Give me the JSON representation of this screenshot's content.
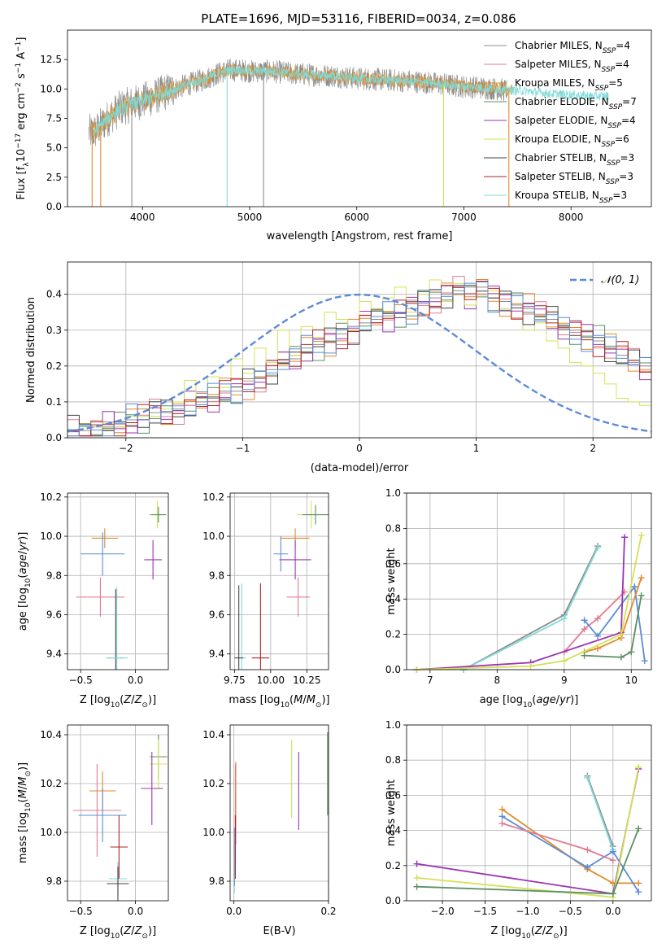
{
  "figure_title": "PLATE=1696, MJD=53116, FIBERID=0034, z=0.086",
  "colors": {
    "Chabrier MILES": "#8c8c8c",
    "Salpeter MILES": "#e07b91",
    "Kroupa MILES": "#e08a2c",
    "Chabrier ELODIE": "#5b8f62",
    "Salpeter ELODIE": "#9b34b5",
    "Kroupa ELODIE": "#d4e157",
    "Chabrier STELIB": "#444444",
    "Salpeter STELIB": "#b22222",
    "Kroupa STELIB": "#7fdbd8",
    "highlight_blue": "#5b8bd9",
    "grid": "#b0b0b0"
  },
  "chart_data": [
    {
      "id": "spectrum",
      "type": "line",
      "xlabel": "wavelength [Angstrom, rest frame]",
      "ylabel": "Flux [f_λ10^-17 erg cm^-2 s^-1 A^-1]",
      "xlim": [
        3300,
        8750
      ],
      "ylim": [
        0,
        15
      ],
      "xticks": [
        4000,
        5000,
        6000,
        7000,
        8000
      ],
      "yticks": [
        0.0,
        2.5,
        5.0,
        7.5,
        10.0,
        12.5
      ],
      "grid": false,
      "legend_position": "top-right",
      "legend": [
        {
          "label": "Chabrier MILES, N",
          "sub": "SSP",
          "suffix": "=4",
          "key": "Chabrier MILES"
        },
        {
          "label": "Salpeter MILES, N",
          "sub": "SSP",
          "suffix": "=4",
          "key": "Salpeter MILES"
        },
        {
          "label": "Kroupa MILES, N",
          "sub": "SSP",
          "suffix": "=5",
          "key": "Kroupa MILES"
        },
        {
          "label": "Chabrier ELODIE, N",
          "sub": "SSP",
          "suffix": "=7",
          "key": "Chabrier ELODIE"
        },
        {
          "label": "Salpeter ELODIE, N",
          "sub": "SSP",
          "suffix": "=4",
          "key": "Salpeter ELODIE"
        },
        {
          "label": "Kroupa ELODIE, N",
          "sub": "SSP",
          "suffix": "=6",
          "key": "Kroupa ELODIE"
        },
        {
          "label": "Chabrier STELIB, N",
          "sub": "SSP",
          "suffix": "=3",
          "key": "Chabrier STELIB"
        },
        {
          "label": "Salpeter STELIB, N",
          "sub": "SSP",
          "suffix": "=3",
          "key": "Salpeter STELIB"
        },
        {
          "label": "Kroupa STELIB, N",
          "sub": "SSP",
          "suffix": "=3",
          "key": "Kroupa STELIB"
        }
      ],
      "envelope": {
        "x": [
          3550,
          3700,
          3800,
          3900,
          4000,
          4100,
          4200,
          4300,
          4400,
          4500,
          4600,
          4700,
          4800,
          4900,
          5000,
          5200,
          5400,
          5600,
          5800,
          6000,
          6200,
          6400,
          6600,
          6800,
          7000,
          7200,
          7400,
          7600,
          7800,
          8000,
          8200
        ],
        "y": [
          6.3,
          7.7,
          8.4,
          8.7,
          9.0,
          9.3,
          9.7,
          10.0,
          10.3,
          10.6,
          10.9,
          11.3,
          11.6,
          11.6,
          11.5,
          11.5,
          11.3,
          11.2,
          11.1,
          10.9,
          10.8,
          10.7,
          10.6,
          10.4,
          10.2,
          10.1,
          9.9,
          9.8,
          9.6,
          9.5,
          9.4
        ]
      },
      "noisy_series": [
        {
          "key": "Chabrier MILES",
          "noise": 2.0,
          "xmin": 3500,
          "xmax": 7400
        },
        {
          "key": "Kroupa MILES",
          "noise": 1.1,
          "xmin": 3520,
          "xmax": 7450
        },
        {
          "key": "Kroupa STELIB",
          "noise": 0.8,
          "xmin": 3540,
          "xmax": 8350
        }
      ],
      "dropouts": [
        {
          "key": "Kroupa MILES",
          "x": 3530
        },
        {
          "key": "Kroupa MILES",
          "x": 3610
        },
        {
          "key": "Chabrier MILES",
          "x": 3900
        },
        {
          "key": "Kroupa STELIB",
          "x": 4790
        },
        {
          "key": "Chabrier MILES",
          "x": 5130
        },
        {
          "key": "Kroupa ELODIE",
          "x": 6810
        },
        {
          "key": "Kroupa MILES",
          "x": 7420
        }
      ]
    },
    {
      "id": "residuals",
      "type": "histogram",
      "xlabel": "(data-model)/error",
      "ylabel": "Normed distribution",
      "xlim": [
        -2.5,
        2.5
      ],
      "ylim": [
        0,
        0.49
      ],
      "xticks": [
        -2,
        -1,
        0,
        1,
        2
      ],
      "xticklabels": [
        "−2",
        "−1",
        "0",
        "1",
        "2"
      ],
      "yticks": [
        0.0,
        0.1,
        0.2,
        0.3,
        0.4
      ],
      "grid": true,
      "legend_position": "top-right",
      "normal_curve_label": "𝒩(0, 1)",
      "bin_width": 0.1,
      "bin_start": -2.5,
      "series": [
        {
          "key": "Chabrier MILES",
          "values": [
            0.02,
            0.02,
            0.03,
            0.03,
            0.03,
            0.05,
            0.05,
            0.07,
            0.07,
            0.08,
            0.09,
            0.1,
            0.11,
            0.13,
            0.13,
            0.15,
            0.17,
            0.19,
            0.21,
            0.22,
            0.25,
            0.26,
            0.27,
            0.29,
            0.3,
            0.32,
            0.33,
            0.34,
            0.35,
            0.36,
            0.38,
            0.39,
            0.4,
            0.41,
            0.4,
            0.42,
            0.39,
            0.38,
            0.37,
            0.36,
            0.34,
            0.33,
            0.31,
            0.3,
            0.28,
            0.27,
            0.25,
            0.23,
            0.21,
            0.2
          ]
        },
        {
          "key": "Kroupa ELODIE",
          "values": [
            0.02,
            0.04,
            0.03,
            0.04,
            0.03,
            0.06,
            0.06,
            0.06,
            0.08,
            0.1,
            0.16,
            0.11,
            0.17,
            0.14,
            0.22,
            0.18,
            0.25,
            0.21,
            0.3,
            0.23,
            0.31,
            0.28,
            0.35,
            0.33,
            0.3,
            0.38,
            0.36,
            0.39,
            0.42,
            0.35,
            0.4,
            0.44,
            0.38,
            0.43,
            0.37,
            0.4,
            0.41,
            0.36,
            0.33,
            0.3,
            0.32,
            0.27,
            0.25,
            0.21,
            0.2,
            0.18,
            0.15,
            0.11,
            0.1,
            0.09
          ]
        }
      ],
      "normal_curve": {
        "sigma": 1.0
      }
    },
    {
      "id": "age_vs_Z",
      "type": "errorbar",
      "xlabel": "Z [log10(Z/Z⊙)]",
      "ylabel": "age  [log10(age/yr)]",
      "xlim": [
        -0.62,
        0.3
      ],
      "ylim": [
        9.32,
        10.22
      ],
      "xticks": [
        -0.5,
        0.0
      ],
      "xticklabels": [
        "−0.5",
        "0.0"
      ],
      "yticks": [
        9.4,
        9.6,
        9.8,
        10.0,
        10.2
      ],
      "grid": true,
      "points": [
        {
          "key": "Kroupa MILES",
          "x": -0.28,
          "y": 9.99,
          "ex": 0.12,
          "ey": 0.05
        },
        {
          "key": "highlight_blue",
          "x": -0.3,
          "y": 9.91,
          "ex": 0.2,
          "ey": 0.11
        },
        {
          "key": "Salpeter MILES",
          "x": -0.32,
          "y": 9.69,
          "ex": 0.22,
          "ey": 0.1
        },
        {
          "key": "Chabrier STELIB",
          "x": -0.18,
          "y": 9.38,
          "ex": 0.08,
          "ey": 0.35
        },
        {
          "key": "Kroupa STELIB",
          "x": -0.17,
          "y": 9.38,
          "ex": 0.1,
          "ey": 0.36
        },
        {
          "key": "Kroupa ELODIE",
          "x": 0.2,
          "y": 10.11,
          "ex": 0.08,
          "ey": 0.07
        },
        {
          "key": "Chabrier ELODIE",
          "x": 0.21,
          "y": 10.11,
          "ex": 0.07,
          "ey": 0.04
        },
        {
          "key": "Salpeter ELODIE",
          "x": 0.16,
          "y": 9.88,
          "ex": 0.08,
          "ey": 0.1
        }
      ]
    },
    {
      "id": "age_vs_mass",
      "type": "errorbar",
      "xlabel": "mass [log10(M/M⊙)]",
      "ylabel": "",
      "xlim": [
        9.72,
        10.4
      ],
      "ylim": [
        9.32,
        10.22
      ],
      "xticks": [
        9.75,
        10.0,
        10.25
      ],
      "xticklabels": [
        "9.75",
        "10.00",
        "10.25"
      ],
      "yticks": [
        9.4,
        9.6,
        9.8,
        10.0,
        10.2
      ],
      "grid": true,
      "points": [
        {
          "key": "Kroupa ELODIE",
          "x": 10.28,
          "y": 10.11,
          "ex": 0.1,
          "ey": 0.07
        },
        {
          "key": "Chabrier ELODIE",
          "x": 10.31,
          "y": 10.11,
          "ex": 0.09,
          "ey": 0.05
        },
        {
          "key": "Kroupa MILES",
          "x": 10.17,
          "y": 9.99,
          "ex": 0.1,
          "ey": 0.05
        },
        {
          "key": "highlight_blue",
          "x": 10.07,
          "y": 9.91,
          "ex": 0.05,
          "ey": 0.09
        },
        {
          "key": "Salpeter ELODIE",
          "x": 10.17,
          "y": 9.88,
          "ex": 0.11,
          "ey": 0.1
        },
        {
          "key": "Salpeter MILES",
          "x": 10.19,
          "y": 9.69,
          "ex": 0.08,
          "ey": 0.1
        },
        {
          "key": "Kroupa STELIB",
          "x": 9.8,
          "y": 9.38,
          "ex": 0.03,
          "ey": 0.38
        },
        {
          "key": "Salpeter STELIB",
          "x": 9.93,
          "y": 9.38,
          "ex": 0.06,
          "ey": 0.38
        },
        {
          "key": "Chabrier STELIB",
          "x": 9.78,
          "y": 9.38,
          "ex": 0.03,
          "ey": 0.37
        }
      ]
    },
    {
      "id": "massweight_vs_age",
      "type": "line",
      "xlabel": "age  [log10(age/yr)]",
      "ylabel": "mass weight",
      "xlim": [
        6.65,
        10.3
      ],
      "ylim": [
        0,
        1
      ],
      "xticks": [
        7,
        8,
        9,
        10
      ],
      "yticks": [
        0.0,
        0.2,
        0.4,
        0.6,
        0.8,
        1.0
      ],
      "grid": true,
      "series": [
        {
          "key": "Chabrier MILES",
          "x": [
            7.5,
            9.0,
            9.5
          ],
          "y": [
            0.0,
            0.31,
            0.7
          ]
        },
        {
          "key": "Kroupa STELIB",
          "x": [
            7.5,
            9.0,
            9.5
          ],
          "y": [
            0.0,
            0.29,
            0.69
          ]
        },
        {
          "key": "Salpeter MILES",
          "x": [
            9.0,
            9.3,
            9.5,
            9.9
          ],
          "y": [
            0.1,
            0.23,
            0.29,
            0.44
          ]
        },
        {
          "key": "highlight_blue",
          "x": [
            9.3,
            9.5,
            10.05,
            10.2
          ],
          "y": [
            0.28,
            0.19,
            0.47,
            0.05
          ]
        },
        {
          "key": "Kroupa MILES",
          "x": [
            9.3,
            9.5,
            9.85,
            10.15
          ],
          "y": [
            0.1,
            0.12,
            0.18,
            0.52
          ]
        },
        {
          "key": "Salpeter ELODIE",
          "x": [
            6.8,
            8.5,
            9.85,
            9.9
          ],
          "y": [
            0.0,
            0.04,
            0.21,
            0.75
          ]
        },
        {
          "key": "Kroupa ELODIE",
          "x": [
            6.8,
            8.5,
            9.0,
            9.85,
            10.15
          ],
          "y": [
            0.0,
            0.02,
            0.05,
            0.2,
            0.76
          ]
        },
        {
          "key": "Chabrier ELODIE",
          "x": [
            9.3,
            9.85,
            10.0,
            10.15
          ],
          "y": [
            0.08,
            0.07,
            0.1,
            0.42
          ]
        }
      ]
    },
    {
      "id": "mass_vs_Z",
      "type": "errorbar",
      "xlabel": "Z [log10(Z/Z⊙)]",
      "ylabel": "mass [log10(M/M⊙)]",
      "xlim": [
        -0.62,
        0.3
      ],
      "ylim": [
        9.72,
        10.44
      ],
      "xticks": [
        -0.5,
        0.0
      ],
      "xticklabels": [
        "−0.5",
        "0.0"
      ],
      "yticks": [
        9.8,
        10.0,
        10.2,
        10.4
      ],
      "grid": true,
      "points": [
        {
          "key": "Chabrier ELODIE",
          "x": 0.21,
          "y": 10.31,
          "ex": 0.08,
          "ey": 0.09
        },
        {
          "key": "Kroupa ELODIE",
          "x": 0.21,
          "y": 10.28,
          "ex": 0.08,
          "ey": 0.1
        },
        {
          "key": "Salpeter ELODIE",
          "x": 0.15,
          "y": 10.18,
          "ex": 0.1,
          "ey": 0.15
        },
        {
          "key": "Kroupa MILES",
          "x": -0.3,
          "y": 10.17,
          "ex": 0.12,
          "ey": 0.08
        },
        {
          "key": "Salpeter MILES",
          "x": -0.35,
          "y": 10.09,
          "ex": 0.22,
          "ey": 0.19
        },
        {
          "key": "highlight_blue",
          "x": -0.3,
          "y": 10.07,
          "ex": 0.22,
          "ey": 0.11
        },
        {
          "key": "Salpeter STELIB",
          "x": -0.15,
          "y": 9.94,
          "ex": 0.08,
          "ey": 0.13
        },
        {
          "key": "Kroupa STELIB",
          "x": -0.16,
          "y": 9.81,
          "ex": 0.08,
          "ey": 0.07
        },
        {
          "key": "Chabrier STELIB",
          "x": -0.16,
          "y": 9.79,
          "ex": 0.1,
          "ey": 0.07
        }
      ]
    },
    {
      "id": "mass_vs_EBV",
      "type": "errorbar",
      "xlabel": "E(B-V)",
      "ylabel": "",
      "xlim": [
        -0.008,
        0.2
      ],
      "ylim": [
        9.72,
        10.44
      ],
      "xticks": [
        0.0,
        0.2
      ],
      "xticklabels": [
        "0.0",
        "0.2"
      ],
      "yticks": [
        9.8,
        10.0,
        10.2,
        10.4
      ],
      "grid": true,
      "points": [
        {
          "key": "Kroupa ELODIE",
          "x": 0.122,
          "y": 10.22,
          "ex": 0,
          "ey": 0.16
        },
        {
          "key": "Salpeter ELODIE",
          "x": 0.137,
          "y": 10.17,
          "ex": 0,
          "ey": 0.16
        },
        {
          "key": "Chabrier ELODIE",
          "x": 0.198,
          "y": 10.24,
          "ex": 0,
          "ey": 0.17
        },
        {
          "key": "Kroupa MILES",
          "x": 0.003,
          "y": 10.16,
          "ex": 0,
          "ey": 0.12
        },
        {
          "key": "Salpeter MILES",
          "x": 0.004,
          "y": 10.12,
          "ex": 0,
          "ey": 0.17
        },
        {
          "key": "Salpeter STELIB",
          "x": 0.003,
          "y": 9.94,
          "ex": 0,
          "ey": 0.13
        },
        {
          "key": "Kroupa STELIB",
          "x": 0.001,
          "y": 9.82,
          "ex": 0,
          "ey": 0.07
        },
        {
          "key": "highlight_blue",
          "x": 0.001,
          "y": 9.9,
          "ex": 0,
          "ey": 0.12
        }
      ]
    },
    {
      "id": "massweight_vs_Z",
      "type": "line",
      "xlabel": "Z [log10(Z/Z⊙)]",
      "ylabel": "mass weight",
      "xlim": [
        -2.42,
        0.45
      ],
      "ylim": [
        0,
        1
      ],
      "xticks": [
        -2.0,
        -1.5,
        -1.0,
        -0.5,
        0.0
      ],
      "xticklabels": [
        "−2.0",
        "−1.5",
        "−1.0",
        "−0.5",
        "0.0"
      ],
      "yticks": [
        0.0,
        0.2,
        0.4,
        0.6,
        0.8,
        1.0
      ],
      "grid": true,
      "series": [
        {
          "key": "Chabrier MILES",
          "x": [
            -0.3,
            0.0
          ],
          "y": [
            0.71,
            0.31
          ]
        },
        {
          "key": "Kroupa STELIB",
          "x": [
            -0.3,
            0.0
          ],
          "y": [
            0.7,
            0.29
          ]
        },
        {
          "key": "Kroupa MILES",
          "x": [
            -1.3,
            -0.3,
            0.0,
            0.3
          ],
          "y": [
            0.52,
            0.18,
            0.1,
            0.1
          ]
        },
        {
          "key": "highlight_blue",
          "x": [
            -1.3,
            -0.3,
            0.0,
            0.3
          ],
          "y": [
            0.48,
            0.19,
            0.28,
            0.05
          ]
        },
        {
          "key": "Salpeter MILES",
          "x": [
            -1.3,
            -0.3,
            0.0
          ],
          "y": [
            0.44,
            0.29,
            0.23
          ]
        },
        {
          "key": "Salpeter ELODIE",
          "x": [
            -2.3,
            0.0,
            0.3
          ],
          "y": [
            0.21,
            0.04,
            0.75
          ]
        },
        {
          "key": "Kroupa ELODIE",
          "x": [
            -2.3,
            0.0,
            0.3
          ],
          "y": [
            0.13,
            0.02,
            0.76
          ]
        },
        {
          "key": "Chabrier ELODIE",
          "x": [
            -2.3,
            0.0,
            0.3
          ],
          "y": [
            0.08,
            0.04,
            0.41
          ]
        }
      ]
    }
  ]
}
